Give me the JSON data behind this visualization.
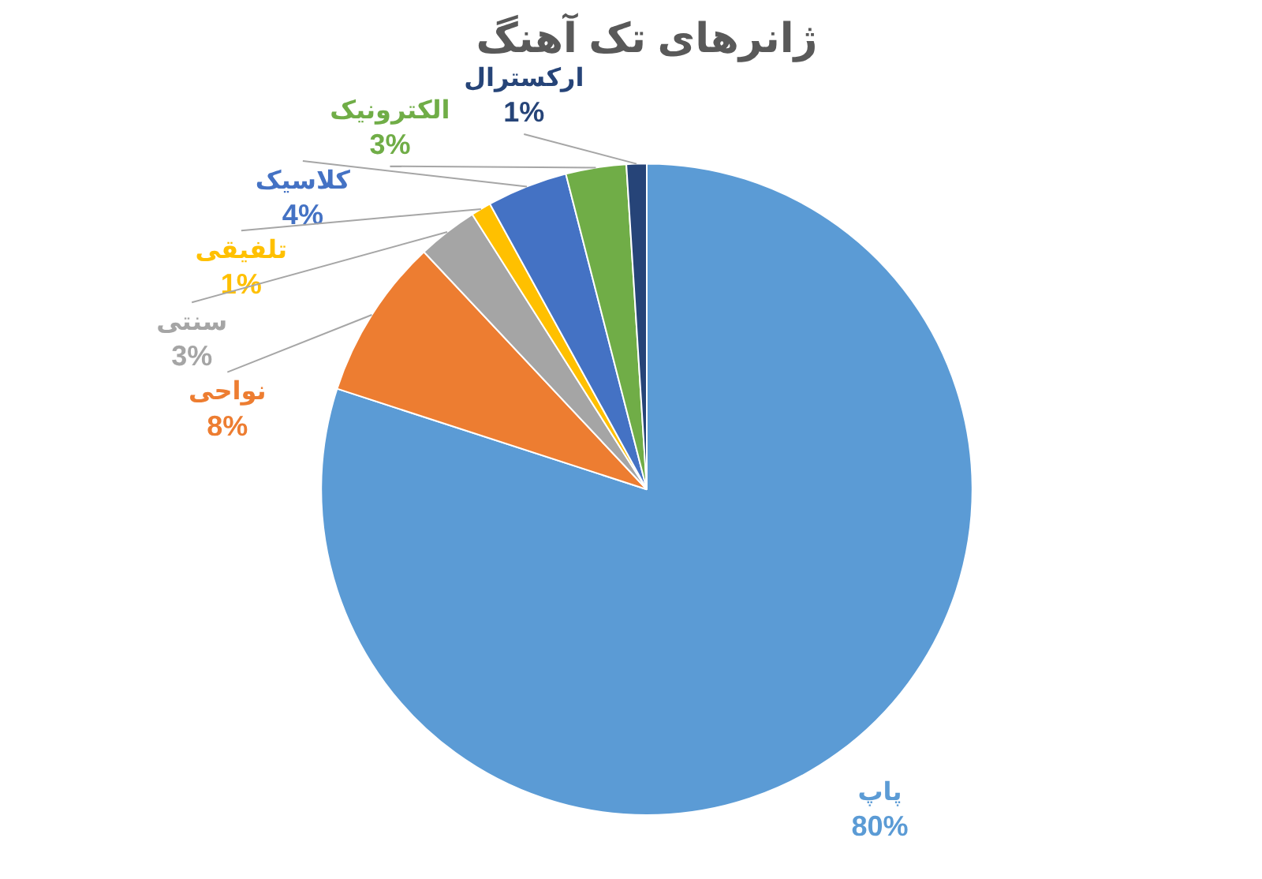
{
  "chart_data": {
    "type": "pie",
    "title": "ژانرهای تک آهنگ",
    "categories": [
      "پاپ",
      "نواحی",
      "سنتی",
      "تلفیقی",
      "کلاسیک",
      "الکترونیک",
      "ارکسترال"
    ],
    "values": [
      80,
      8,
      3,
      1,
      4,
      3,
      1
    ],
    "value_labels": [
      "80%",
      "8%",
      "3%",
      "1%",
      "4%",
      "3%",
      "1%"
    ],
    "colors": [
      "#5b9bd5",
      "#ed7d31",
      "#a5a5a5",
      "#ffc000",
      "#4472c4",
      "#70ad47",
      "#264478"
    ],
    "legend": false
  }
}
